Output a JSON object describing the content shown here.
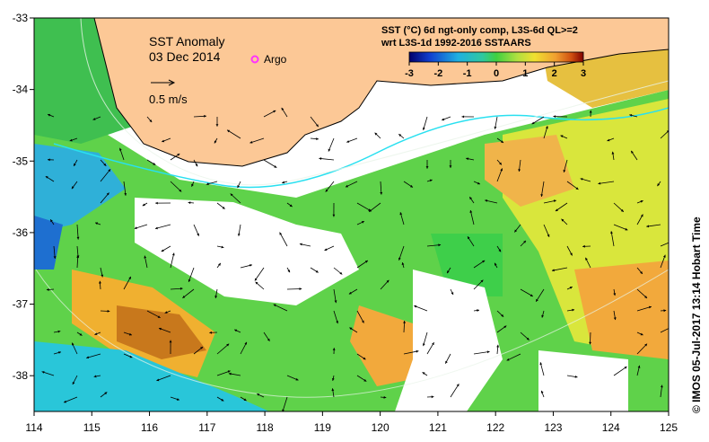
{
  "map": {
    "title": "SST Anomaly",
    "date": "03 Dec 2014",
    "argo_label": "Argo",
    "vector_scale_label": "0.5 m/s",
    "colorbar_title_line1": "SST (°C) 6d ngt-only comp, L3S-6d QL>=2",
    "colorbar_title_line2": "wrt L3S-1d 1992-2016 SSTAARS",
    "colorbar_ticks": [
      "-3",
      "-2",
      "-1",
      "0",
      "1",
      "2",
      "3"
    ],
    "colorbar_range": [
      -3,
      3
    ],
    "side_credit": "© IMOS 05-Jul-2017 13:14 Hobart Time",
    "x_ticks": [
      "114",
      "115",
      "116",
      "117",
      "118",
      "119",
      "120",
      "121",
      "122",
      "123",
      "124",
      "125"
    ],
    "y_ticks": [
      "-33",
      "-34",
      "-35",
      "-36",
      "-37",
      "-38"
    ],
    "lon_range": [
      114,
      125
    ],
    "lat_range": [
      -38.5,
      -33
    ],
    "colors": {
      "land": "#fcc896",
      "warm_orange": "#f2a93c",
      "yellow": "#e8e43a",
      "green": "#3ecf4a",
      "cyan": "#29c6d9",
      "blue": "#1e6fd0",
      "argo_marker": "#ff33ff"
    }
  }
}
